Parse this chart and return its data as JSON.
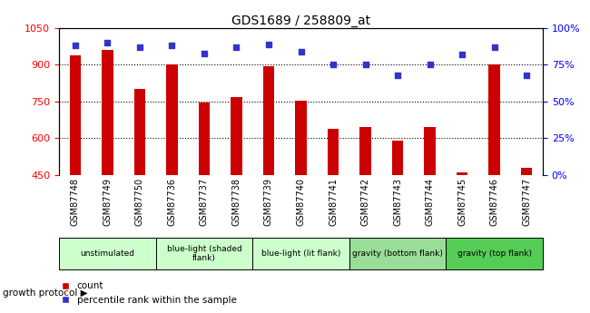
{
  "title": "GDS1689 / 258809_at",
  "samples": [
    "GSM87748",
    "GSM87749",
    "GSM87750",
    "GSM87736",
    "GSM87737",
    "GSM87738",
    "GSM87739",
    "GSM87740",
    "GSM87741",
    "GSM87742",
    "GSM87743",
    "GSM87744",
    "GSM87745",
    "GSM87746",
    "GSM87747"
  ],
  "counts": [
    940,
    960,
    800,
    900,
    745,
    770,
    895,
    755,
    640,
    645,
    590,
    645,
    460,
    900,
    480
  ],
  "percentiles": [
    88,
    90,
    87,
    88,
    83,
    87,
    89,
    84,
    75,
    75,
    68,
    75,
    82,
    87,
    68
  ],
  "ylim_left": [
    450,
    1050
  ],
  "ylim_right": [
    0,
    100
  ],
  "yticks_left": [
    450,
    600,
    750,
    900,
    1050
  ],
  "yticks_right": [
    0,
    25,
    50,
    75,
    100
  ],
  "bar_color": "#cc0000",
  "dot_color": "#3333cc",
  "groups": [
    {
      "label": "unstimulated",
      "start": 0,
      "end": 3,
      "color": "#ccffcc"
    },
    {
      "label": "blue-light (shaded\nflank)",
      "start": 3,
      "end": 6,
      "color": "#ccffcc"
    },
    {
      "label": "blue-light (lit flank)",
      "start": 6,
      "end": 9,
      "color": "#ccffcc"
    },
    {
      "label": "gravity (bottom flank)",
      "start": 9,
      "end": 12,
      "color": "#99dd99"
    },
    {
      "label": "gravity (top flank)",
      "start": 12,
      "end": 15,
      "color": "#55cc55"
    }
  ],
  "group_protocol_label": "growth protocol",
  "legend_count_label": "count",
  "legend_percentile_label": "percentile rank within the sample",
  "bar_width": 0.35,
  "dotgrid_lines": [
    600,
    750,
    900
  ],
  "xtick_bg_color": "#cccccc",
  "fig_bg_color": "#ffffff"
}
